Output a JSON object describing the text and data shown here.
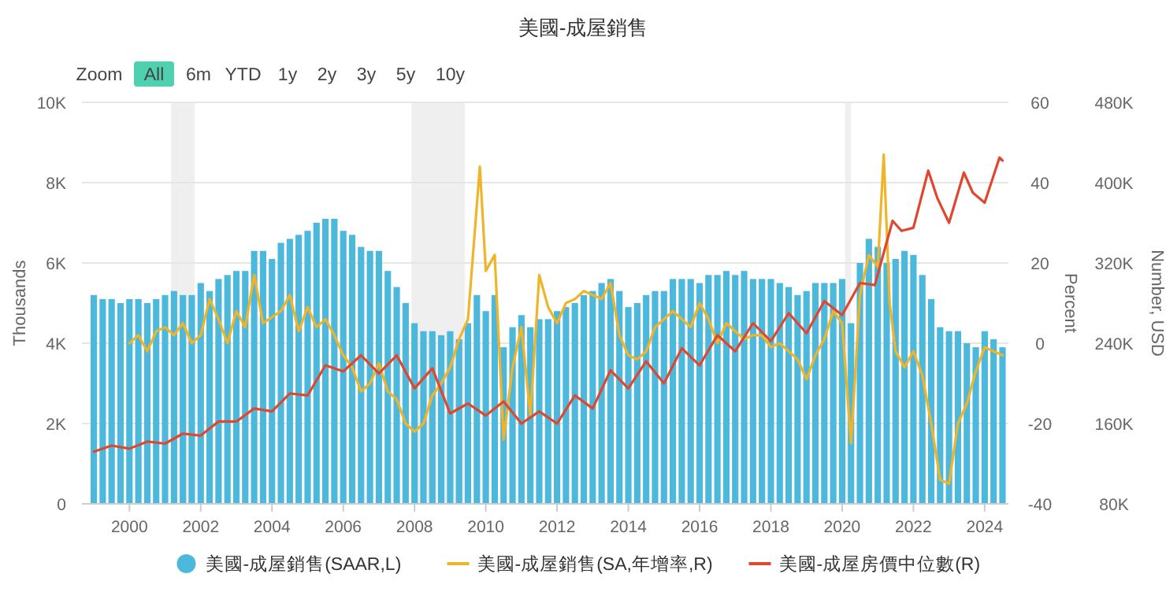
{
  "chart_data": {
    "type": "bar",
    "title": "美國-成屋銷售",
    "ylabel": "Thousands",
    "y2label": "Percent",
    "y3label": "Number, USD",
    "annotations": [
      "Zoom",
      "All",
      "6m",
      "YTD",
      "1y",
      "2y",
      "3y",
      "5y",
      "10y"
    ],
    "x": [
      "1999-01",
      "1999-04",
      "1999-07",
      "1999-10",
      "2000-01",
      "2000-04",
      "2000-07",
      "2000-10",
      "2001-01",
      "2001-04",
      "2001-07",
      "2001-10",
      "2002-01",
      "2002-04",
      "2002-07",
      "2002-10",
      "2003-01",
      "2003-04",
      "2003-07",
      "2003-10",
      "2004-01",
      "2004-04",
      "2004-07",
      "2004-10",
      "2005-01",
      "2005-04",
      "2005-07",
      "2005-10",
      "2006-01",
      "2006-04",
      "2006-07",
      "2006-10",
      "2007-01",
      "2007-04",
      "2007-07",
      "2007-10",
      "2008-01",
      "2008-04",
      "2008-07",
      "2008-10",
      "2009-01",
      "2009-04",
      "2009-07",
      "2009-10",
      "2010-01",
      "2010-04",
      "2010-07",
      "2010-10",
      "2011-01",
      "2011-04",
      "2011-07",
      "2011-10",
      "2012-01",
      "2012-04",
      "2012-07",
      "2012-10",
      "2013-01",
      "2013-04",
      "2013-07",
      "2013-10",
      "2014-01",
      "2014-04",
      "2014-07",
      "2014-10",
      "2015-01",
      "2015-04",
      "2015-07",
      "2015-10",
      "2016-01",
      "2016-04",
      "2016-07",
      "2016-10",
      "2017-01",
      "2017-04",
      "2017-07",
      "2017-10",
      "2018-01",
      "2018-04",
      "2018-07",
      "2018-10",
      "2019-01",
      "2019-04",
      "2019-07",
      "2019-10",
      "2020-01",
      "2020-04",
      "2020-07",
      "2020-10",
      "2021-01",
      "2021-04",
      "2021-07",
      "2021-10",
      "2022-01",
      "2022-04",
      "2022-07",
      "2022-10",
      "2023-01",
      "2023-04",
      "2023-07",
      "2023-10",
      "2024-01",
      "2024-04",
      "2024-07"
    ],
    "series": [
      {
        "name": "美國-成屋銷售(SAAR,L)",
        "color": "#4cb8dc",
        "values": [
          5200,
          5100,
          5100,
          5000,
          5100,
          5100,
          5000,
          5100,
          5200,
          5300,
          5200,
          5200,
          5500,
          5300,
          5600,
          5700,
          5800,
          5800,
          6300,
          6300,
          6100,
          6500,
          6600,
          6700,
          6800,
          7000,
          7100,
          7100,
          6800,
          6700,
          6400,
          6300,
          6300,
          5800,
          5400,
          5000,
          4500,
          4300,
          4300,
          4200,
          4300,
          4100,
          4500,
          5200,
          4800,
          5200,
          3900,
          4400,
          4700,
          4400,
          4600,
          4600,
          4800,
          4900,
          5000,
          5200,
          5300,
          5500,
          5600,
          5300,
          4900,
          5000,
          5200,
          5300,
          5300,
          5600,
          5600,
          5600,
          5500,
          5700,
          5700,
          5800,
          5700,
          5800,
          5600,
          5600,
          5600,
          5500,
          5400,
          5200,
          5300,
          5500,
          5500,
          5500,
          5600,
          4500,
          6000,
          6600,
          6400,
          6000,
          6100,
          6300,
          6200,
          5700,
          5100,
          4400,
          4300,
          4300,
          4000,
          3900,
          4300,
          4100,
          3900
        ]
      },
      {
        "name": "美國-成屋銷售(SA,年增率,R)",
        "type": "line",
        "axis": "y2",
        "color": "#f0b429",
        "x": [
          "2000-01",
          "2000-04",
          "2000-07",
          "2000-10",
          "2001-01",
          "2001-04",
          "2001-07",
          "2001-10",
          "2002-01",
          "2002-04",
          "2002-07",
          "2002-10",
          "2003-01",
          "2003-04",
          "2003-07",
          "2003-10",
          "2004-04",
          "2004-07",
          "2004-10",
          "2005-01",
          "2005-04",
          "2005-07",
          "2005-10",
          "2006-01",
          "2006-04",
          "2006-07",
          "2006-10",
          "2007-01",
          "2007-04",
          "2007-07",
          "2007-10",
          "2008-01",
          "2008-04",
          "2008-07",
          "2008-10",
          "2009-01",
          "2009-04",
          "2009-07",
          "2009-11",
          "2010-01",
          "2010-04",
          "2010-07",
          "2010-10",
          "2011-01",
          "2011-04",
          "2011-07",
          "2011-10",
          "2012-01",
          "2012-04",
          "2012-07",
          "2012-10",
          "2013-04",
          "2013-07",
          "2013-10",
          "2014-01",
          "2014-04",
          "2014-07",
          "2014-10",
          "2015-04",
          "2015-07",
          "2015-10",
          "2016-01",
          "2016-04",
          "2016-07",
          "2016-10",
          "2017-01",
          "2017-04",
          "2017-07",
          "2017-10",
          "2018-01",
          "2018-04",
          "2018-10",
          "2019-01",
          "2019-04",
          "2019-07",
          "2019-10",
          "2020-01",
          "2020-04",
          "2020-07",
          "2020-10",
          "2021-01",
          "2021-03",
          "2021-05",
          "2021-07",
          "2021-10",
          "2022-01",
          "2022-04",
          "2022-07",
          "2022-10",
          "2023-01",
          "2023-04",
          "2023-07",
          "2023-10",
          "2024-01",
          "2024-04",
          "2024-07"
        ],
        "values": [
          0,
          2,
          -2,
          3,
          4,
          2,
          5,
          0,
          2,
          11,
          6,
          0,
          8,
          4,
          17,
          5,
          8,
          12,
          3,
          9,
          4,
          6,
          2,
          -3,
          -6,
          -12,
          -10,
          -5,
          -12,
          -14,
          -20,
          -22,
          -20,
          -13,
          -10,
          -6,
          1,
          6,
          44,
          18,
          22,
          -24,
          -6,
          4,
          -18,
          17,
          9,
          5,
          10,
          11,
          13,
          11,
          15,
          2,
          -3,
          -4,
          -2,
          4,
          8,
          6,
          4,
          10,
          6,
          0,
          5,
          3,
          1,
          2,
          2,
          -1,
          0,
          -4,
          -9,
          -3,
          1,
          8,
          5,
          -25,
          12,
          22,
          19,
          47,
          10,
          -2,
          -6,
          -2,
          -8,
          -20,
          -34,
          -35,
          -20,
          -15,
          -7,
          -1,
          -2,
          -3
        ]
      },
      {
        "name": "美國-成屋房價中位數(R)",
        "type": "line",
        "axis": "y3",
        "color": "#e0472f",
        "x": [
          "1999-01",
          "1999-07",
          "2000-01",
          "2000-07",
          "2001-01",
          "2001-07",
          "2002-01",
          "2002-07",
          "2003-01",
          "2003-07",
          "2004-01",
          "2004-07",
          "2005-01",
          "2005-07",
          "2006-01",
          "2006-07",
          "2007-01",
          "2007-07",
          "2008-01",
          "2008-07",
          "2009-01",
          "2009-07",
          "2010-01",
          "2010-07",
          "2011-01",
          "2011-07",
          "2012-01",
          "2012-07",
          "2013-01",
          "2013-07",
          "2014-01",
          "2014-07",
          "2015-01",
          "2015-07",
          "2016-01",
          "2016-07",
          "2017-01",
          "2017-07",
          "2018-01",
          "2018-07",
          "2019-01",
          "2019-07",
          "2020-01",
          "2020-07",
          "2020-12",
          "2021-06",
          "2021-09",
          "2022-01",
          "2022-06",
          "2022-09",
          "2023-01",
          "2023-06",
          "2023-09",
          "2024-01",
          "2024-06",
          "2024-07"
        ],
        "values": [
          132000,
          138000,
          135000,
          142000,
          140000,
          150000,
          148000,
          162000,
          162000,
          175000,
          172000,
          190000,
          188000,
          218000,
          212000,
          228000,
          210000,
          228000,
          195000,
          215000,
          170000,
          180000,
          168000,
          182000,
          160000,
          172000,
          160000,
          188000,
          175000,
          213000,
          195000,
          222000,
          200000,
          235000,
          218000,
          248000,
          232000,
          260000,
          242000,
          270000,
          250000,
          282000,
          268000,
          300000,
          298000,
          362000,
          352000,
          355000,
          412000,
          385000,
          360000,
          410000,
          390000,
          380000,
          425000,
          422000
        ]
      }
    ],
    "xlim": [
      "1998-09",
      "2024-09"
    ],
    "xticks": [
      "2000",
      "2002",
      "2004",
      "2006",
      "2008",
      "2010",
      "2012",
      "2014",
      "2016",
      "2018",
      "2020",
      "2022",
      "2024"
    ],
    "ylim": [
      0,
      10000
    ],
    "yticks": [
      0,
      {
        "value": 2000,
        "label": "2K"
      },
      {
        "value": 4000,
        "label": "4K"
      },
      {
        "value": 6000,
        "label": "6K"
      },
      {
        "value": 8000,
        "label": "8K"
      },
      {
        "value": 10000,
        "label": "10K"
      }
    ],
    "y2lim": [
      -40,
      60
    ],
    "y2ticks": [
      -40,
      -20,
      0,
      20,
      40,
      60
    ],
    "y3lim": [
      80000,
      480000
    ],
    "y3ticks": [
      {
        "value": 80000,
        "label": "80K"
      },
      {
        "value": 160000,
        "label": "160K"
      },
      {
        "value": 240000,
        "label": "240K"
      },
      {
        "value": 320000,
        "label": "320K"
      },
      {
        "value": 400000,
        "label": "400K"
      },
      {
        "value": 480000,
        "label": "480K"
      }
    ],
    "bands": [
      {
        "axis": "x",
        "from": "2001-03",
        "to": "2001-11",
        "color": "#efefef"
      },
      {
        "axis": "x",
        "from": "2007-12",
        "to": "2009-06",
        "color": "#efefef"
      },
      {
        "axis": "x",
        "from": "2020-02",
        "to": "2020-04",
        "color": "#efefef"
      }
    ],
    "grid": "y",
    "legend": "bottom"
  }
}
